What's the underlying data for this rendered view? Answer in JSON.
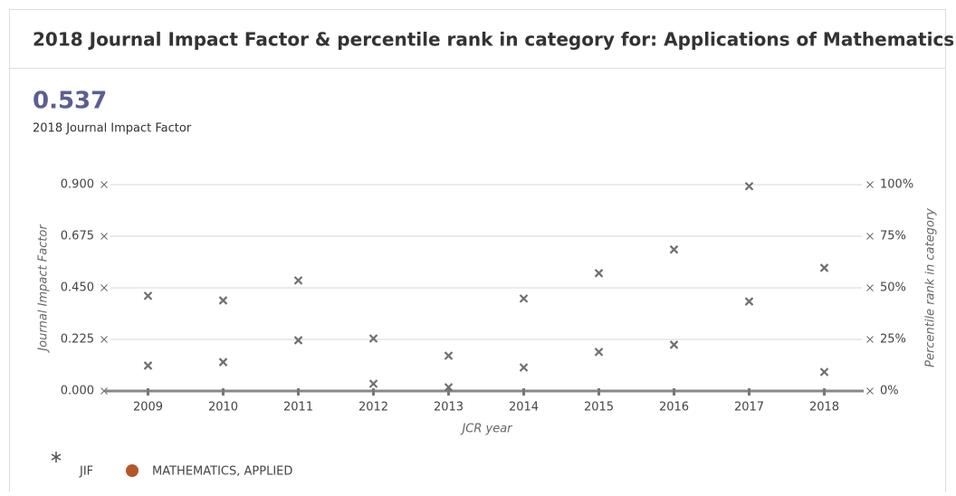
{
  "chart_data": {
    "type": "scatter",
    "title": "2018 Journal Impact Factor & percentile rank in category for: Applications of Mathematics",
    "headline_value": "0.537",
    "headline_label": "2018 Journal Impact Factor",
    "xlabel": "JCR year",
    "ylabel": "Journal Impact Factor",
    "y2label": "Percentile rank in category",
    "categories": [
      "2009",
      "2010",
      "2011",
      "2012",
      "2013",
      "2014",
      "2015",
      "2016",
      "2017",
      "2018"
    ],
    "marker_color": "#6f6f6f",
    "series": [
      {
        "name": "JIF",
        "color": "#555555",
        "values": [
          0.415,
          0.395,
          0.482,
          0.229,
          0.154,
          0.403,
          0.514,
          0.617,
          0.893,
          0.537
        ]
      },
      {
        "name": "MATHEMATICS, APPLIED",
        "color": "#b5562a",
        "axis": "y2",
        "values": [
          12.3,
          14.0,
          24.6,
          3.5,
          1.8,
          11.4,
          18.9,
          22.4,
          43.4,
          9.2
        ]
      }
    ],
    "ylim": [
      0,
      0.9
    ],
    "yticks": [
      {
        "value": 0,
        "label": "0.000"
      },
      {
        "value": 0.225,
        "label": "0.225"
      },
      {
        "value": 0.45,
        "label": "0.450"
      },
      {
        "value": 0.675,
        "label": "0.675"
      },
      {
        "value": 0.9,
        "label": "0.900"
      }
    ],
    "y2lim": [
      0,
      100
    ],
    "y2ticks": [
      {
        "value": 0,
        "label": "0%"
      },
      {
        "value": 25,
        "label": "25%"
      },
      {
        "value": 50,
        "label": "50%"
      },
      {
        "value": 75,
        "label": "75%"
      },
      {
        "value": 100,
        "label": "100%"
      }
    ],
    "grid": true
  }
}
